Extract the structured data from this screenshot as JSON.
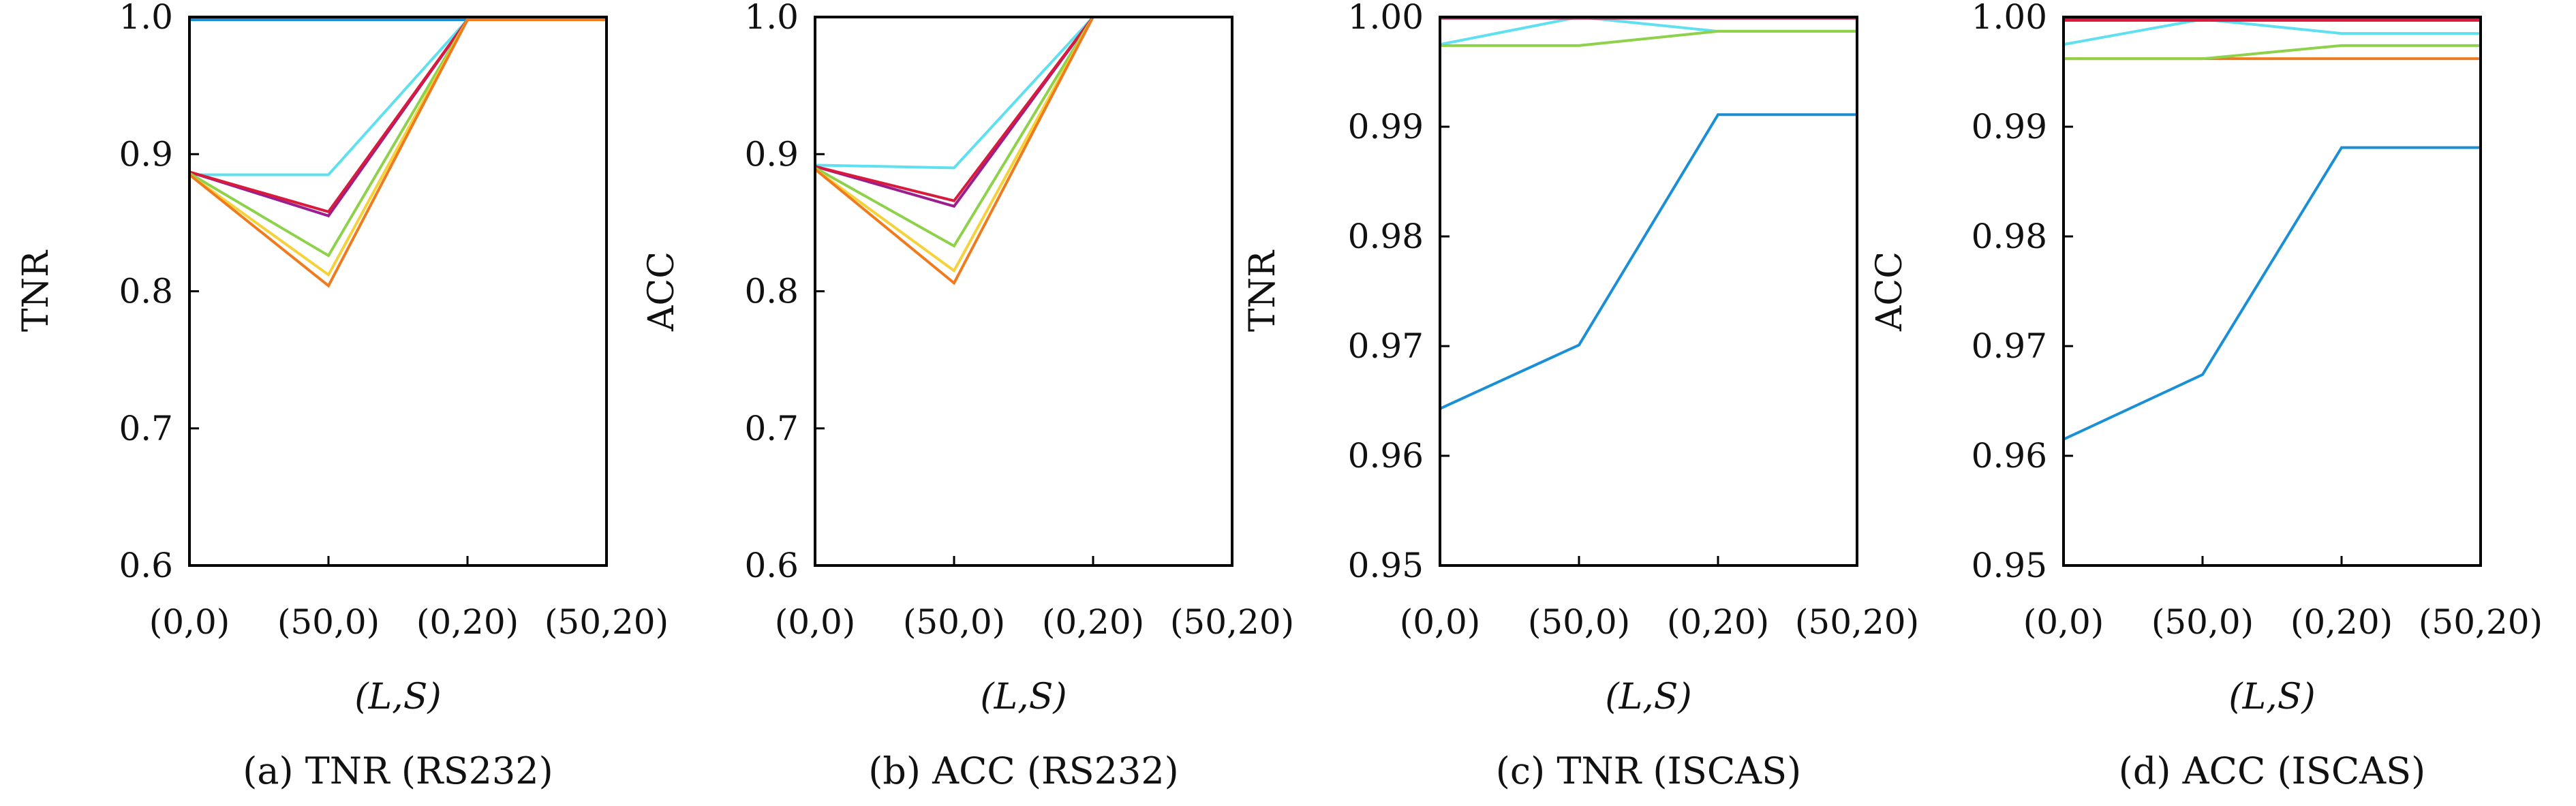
{
  "chart_data": [
    {
      "type": "line",
      "caption": "(a) TNR (RS232)",
      "xlabel": "(L,S)",
      "ylabel": "TNR",
      "ylim": [
        0.6,
        1.0
      ],
      "yticks": [
        "0.6",
        "0.7",
        "0.8",
        "0.9",
        "1.0"
      ],
      "categories": [
        "(0,0)",
        "(50,0)",
        "(0,20)",
        "(50,20)"
      ],
      "series": [
        {
          "color": "#1a8fd6",
          "values": [
            0.998,
            0.998,
            0.998,
            0.998
          ]
        },
        {
          "color": "#5fe0f0",
          "values": [
            0.885,
            0.885,
            0.998,
            0.998
          ]
        },
        {
          "color": "#9b1e8e",
          "values": [
            0.887,
            0.855,
            0.998,
            0.998
          ]
        },
        {
          "color": "#d81b3c",
          "values": [
            0.887,
            0.858,
            0.998,
            0.998
          ]
        },
        {
          "color": "#8ed14a",
          "values": [
            0.886,
            0.826,
            0.998,
            0.998
          ]
        },
        {
          "color": "#f5d23a",
          "values": [
            0.885,
            0.812,
            0.998,
            0.998
          ]
        },
        {
          "color": "#f07a1e",
          "values": [
            0.885,
            0.804,
            0.998,
            0.998
          ]
        }
      ]
    },
    {
      "type": "line",
      "caption": "(b) ACC (RS232)",
      "xlabel": "(L,S)",
      "ylabel": "ACC",
      "ylim": [
        0.6,
        1.0
      ],
      "yticks": [
        "0.6",
        "0.7",
        "0.8",
        "0.9",
        "1.0"
      ],
      "categories": [
        "(0,0)",
        "(50,0)",
        "(0,20)",
        "(50,20)"
      ],
      "series": [
        {
          "color": "#1a8fd6",
          "values": [
            1.0,
            1.0,
            1.0,
            1.0
          ]
        },
        {
          "color": "#5fe0f0",
          "values": [
            0.892,
            0.89,
            1.0,
            1.0
          ]
        },
        {
          "color": "#9b1e8e",
          "values": [
            0.891,
            0.862,
            1.0,
            1.0
          ]
        },
        {
          "color": "#d81b3c",
          "values": [
            0.891,
            0.866,
            1.0,
            1.0
          ]
        },
        {
          "color": "#8ed14a",
          "values": [
            0.89,
            0.833,
            1.0,
            1.0
          ]
        },
        {
          "color": "#f5d23a",
          "values": [
            0.889,
            0.815,
            1.0,
            1.0
          ]
        },
        {
          "color": "#f07a1e",
          "values": [
            0.889,
            0.806,
            1.0,
            1.0
          ]
        }
      ]
    },
    {
      "type": "line",
      "caption": "(c) TNR (ISCAS)",
      "xlabel": "(L,S)",
      "ylabel": "TNR",
      "ylim": [
        0.95,
        1.0
      ],
      "yticks": [
        "0.95",
        "0.96",
        "0.97",
        "0.98",
        "0.99",
        "1.00"
      ],
      "categories": [
        "(0,0)",
        "(50,0)",
        "(0,20)",
        "(50,20)"
      ],
      "series": [
        {
          "color": "#1a8fd6",
          "values": [
            0.9643,
            0.9701,
            0.9911,
            0.9911
          ]
        },
        {
          "color": "#5fe0f0",
          "values": [
            0.9975,
            1.0,
            0.9987,
            0.9987
          ]
        },
        {
          "color": "#8ed14a",
          "values": [
            0.9974,
            0.9974,
            0.9987,
            0.9987
          ]
        },
        {
          "color": "#9b1e8e",
          "values": [
            0.9999,
            0.9999,
            0.9999,
            0.9999
          ]
        },
        {
          "color": "#d81b3c",
          "values": [
            0.9999,
            0.9999,
            0.9999,
            0.9999
          ]
        }
      ]
    },
    {
      "type": "line",
      "caption": "(d) ACC (ISCAS)",
      "xlabel": "(L,S)",
      "ylabel": "ACC",
      "ylim": [
        0.95,
        1.0
      ],
      "yticks": [
        "0.95",
        "0.96",
        "0.97",
        "0.98",
        "0.99",
        "1.00"
      ],
      "categories": [
        "(0,0)",
        "(50,0)",
        "(0,20)",
        "(50,20)"
      ],
      "series": [
        {
          "color": "#1a8fd6",
          "values": [
            0.9615,
            0.9674,
            0.9881,
            0.9881
          ]
        },
        {
          "color": "#f07a1e",
          "values": [
            0.9962,
            0.9962,
            0.9962,
            0.9962
          ]
        },
        {
          "color": "#8ed14a",
          "values": [
            0.9962,
            0.9962,
            0.9974,
            0.9974
          ]
        },
        {
          "color": "#5fe0f0",
          "values": [
            0.9975,
            0.9998,
            0.9985,
            0.9985
          ]
        },
        {
          "color": "#9b1e8e",
          "values": [
            0.9999,
            0.9999,
            0.9999,
            0.9999
          ]
        },
        {
          "color": "#d81b3c",
          "values": [
            0.9997,
            0.9997,
            0.9997,
            0.9997
          ]
        }
      ]
    }
  ]
}
